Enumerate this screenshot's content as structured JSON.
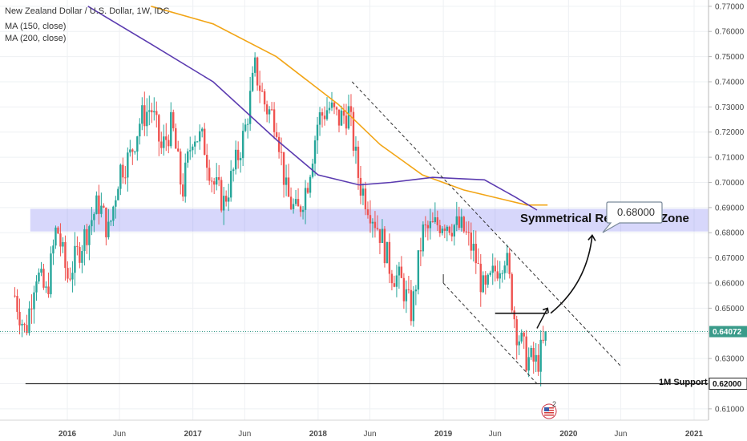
{
  "chart_data": {
    "type": "candlestick",
    "symbol_title": "New Zealand Dollar / U.S. Dollar, 1W, IDC",
    "indicators": [
      {
        "label": "MA (150, close)",
        "color": "#5b3bb0"
      },
      {
        "label": "MA (200, close)",
        "color": "#f2a516"
      }
    ],
    "x_ticks": [
      "2016",
      "Jun",
      "2017",
      "Jun",
      "2018",
      "Jun",
      "2019",
      "Jun",
      "2020",
      "Jun",
      "2021"
    ],
    "x_tick_dates": [
      "2016-01-01",
      "2016-06-01",
      "2017-01-01",
      "2017-06-01",
      "2018-01-01",
      "2018-06-01",
      "2019-01-01",
      "2019-06-01",
      "2020-01-01",
      "2020-06-01",
      "2021-01-01"
    ],
    "y_ticks": [
      "0.77000",
      "0.76000",
      "0.75000",
      "0.74000",
      "0.73000",
      "0.72000",
      "0.71000",
      "0.70000",
      "0.69000",
      "0.68000",
      "0.67000",
      "0.66000",
      "0.65000",
      "0.64000",
      "0.63000",
      "0.62000",
      "0.61000"
    ],
    "ylim": [
      0.6055,
      0.7725
    ],
    "last_price": "0.64072",
    "last_price_value": 0.6407,
    "support_price": "0.62000",
    "support_price_value": 0.62,
    "support_label": "1M Support",
    "zone_label": "Symmetrical Re",
    "zone_label_2": "Zone",
    "zone_range": [
      0.6805,
      0.6895
    ],
    "target_label": "0.68000",
    "price_path": [
      [
        "2015-08-01",
        0.655
      ],
      [
        "2015-09-01",
        0.64
      ],
      [
        "2015-10-01",
        0.665
      ],
      [
        "2015-11-01",
        0.655
      ],
      [
        "2015-12-01",
        0.683
      ],
      [
        "2016-01-01",
        0.662
      ],
      [
        "2016-02-01",
        0.672
      ],
      [
        "2016-03-01",
        0.682
      ],
      [
        "2016-04-01",
        0.692
      ],
      [
        "2016-05-01",
        0.68
      ],
      [
        "2016-06-01",
        0.705
      ],
      [
        "2016-07-01",
        0.71
      ],
      [
        "2016-08-01",
        0.725
      ],
      [
        "2016-09-01",
        0.73
      ],
      [
        "2016-10-01",
        0.713
      ],
      [
        "2016-11-01",
        0.723
      ],
      [
        "2016-12-01",
        0.696
      ],
      [
        "2017-01-01",
        0.72
      ],
      [
        "2017-02-01",
        0.716
      ],
      [
        "2017-03-01",
        0.7
      ],
      [
        "2017-04-01",
        0.692
      ],
      [
        "2017-05-01",
        0.705
      ],
      [
        "2017-06-01",
        0.72
      ],
      [
        "2017-07-01",
        0.745
      ],
      [
        "2017-08-01",
        0.73
      ],
      [
        "2017-09-01",
        0.725
      ],
      [
        "2017-10-01",
        0.695
      ],
      [
        "2017-11-01",
        0.687
      ],
      [
        "2017-12-01",
        0.7
      ],
      [
        "2018-01-01",
        0.725
      ],
      [
        "2018-02-01",
        0.73
      ],
      [
        "2018-03-01",
        0.725
      ],
      [
        "2018-04-01",
        0.728
      ],
      [
        "2018-05-01",
        0.7
      ],
      [
        "2018-06-01",
        0.69
      ],
      [
        "2018-07-01",
        0.68
      ],
      [
        "2018-08-01",
        0.665
      ],
      [
        "2018-09-01",
        0.66
      ],
      [
        "2018-10-01",
        0.648
      ],
      [
        "2018-11-01",
        0.68
      ],
      [
        "2018-12-01",
        0.682
      ],
      [
        "2019-01-01",
        0.685
      ],
      [
        "2019-02-01",
        0.683
      ],
      [
        "2019-03-01",
        0.681
      ],
      [
        "2019-04-01",
        0.672
      ],
      [
        "2019-05-01",
        0.655
      ],
      [
        "2019-06-01",
        0.665
      ],
      [
        "2019-07-01",
        0.672
      ],
      [
        "2019-08-01",
        0.642
      ],
      [
        "2019-09-01",
        0.63
      ],
      [
        "2019-10-01",
        0.628
      ],
      [
        "2019-11-01",
        0.64
      ]
    ],
    "ma200_path": [
      [
        "2016-09-01",
        0.77
      ],
      [
        "2017-03-01",
        0.763
      ],
      [
        "2017-09-01",
        0.75
      ],
      [
        "2018-03-01",
        0.731
      ],
      [
        "2018-07-01",
        0.715
      ],
      [
        "2018-11-01",
        0.703
      ],
      [
        "2019-03-01",
        0.697
      ],
      [
        "2019-07-01",
        0.693
      ],
      [
        "2019-09-01",
        0.691
      ],
      [
        "2019-11-01",
        0.691
      ]
    ],
    "ma150_path": [
      [
        "2016-03-01",
        0.77
      ],
      [
        "2016-09-01",
        0.755
      ],
      [
        "2017-03-01",
        0.74
      ],
      [
        "2017-09-01",
        0.717
      ],
      [
        "2018-01-01",
        0.703
      ],
      [
        "2018-05-01",
        0.699
      ],
      [
        "2018-08-01",
        0.7
      ],
      [
        "2018-12-01",
        0.702
      ],
      [
        "2019-05-01",
        0.701
      ],
      [
        "2019-08-01",
        0.694
      ],
      [
        "2019-10-01",
        0.689
      ]
    ],
    "channel_upper": [
      [
        "2018-04-10",
        0.74
      ],
      [
        "2020-06-01",
        0.627
      ]
    ],
    "channel_lower": [
      [
        "2019-01-01",
        0.66
      ],
      [
        "2019-10-01",
        0.62
      ]
    ],
    "resistance_segment": [
      [
        "2019-06-01",
        0.648
      ],
      [
        "2019-11-01",
        0.648
      ]
    ],
    "current_line_dates": [
      "2019-10-01",
      "2019-11-01"
    ],
    "forecast_arrow_from": [
      "2019-10-01",
      0.642
    ],
    "forecast_arrow_to": [
      "2019-11-01",
      0.65
    ],
    "breakout_curve": [
      [
        "2019-11-10",
        0.648
      ],
      [
        "2020-01-20",
        0.663
      ],
      [
        "2020-03-10",
        0.679
      ]
    ],
    "grid": true,
    "legend_position": "top-left"
  }
}
